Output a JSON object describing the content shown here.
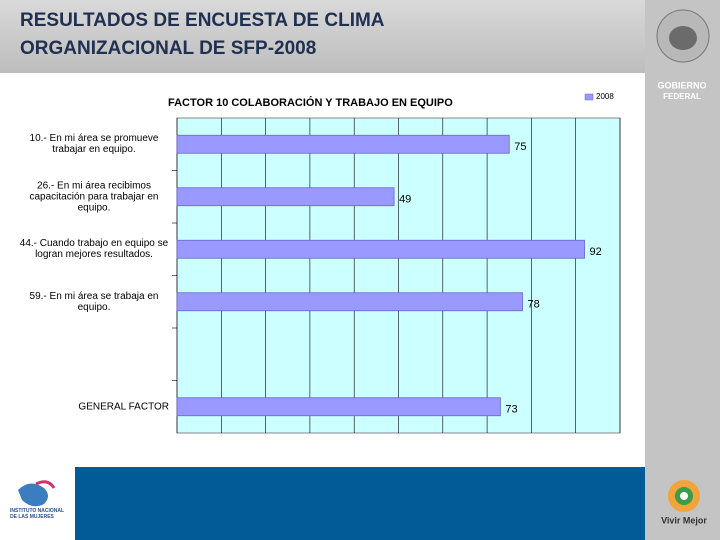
{
  "slide_title": [
    "RESULTADOS DE ENCUESTA DE CLIMA",
    "ORGANIZACIONAL DE SFP-2008"
  ],
  "logos": {
    "gobierno": [
      "GOBIERNO",
      "FEDERAL"
    ],
    "vivir": "Vivir Mejor",
    "inmujeres": "INSTITUTO NACIONAL DE LAS MUJERES"
  },
  "chart_data": {
    "type": "bar",
    "orientation": "horizontal",
    "title": "FACTOR  10 COLABORACIÓN Y TRABAJO EN EQUIPO",
    "categories": [
      "10.- En mi área se promueve trabajar en equipo.",
      "26.- En mi área recibimos capacitación para trabajar en equipo.",
      "44.- Cuando trabajo en equipo se logran mejores resultados.",
      "59.- En mi área se trabaja en equipo.",
      null,
      "GENERAL FACTOR"
    ],
    "series": [
      {
        "name": "2008",
        "color": "#9999ff",
        "values": [
          75,
          49,
          92,
          78,
          null,
          73
        ]
      }
    ],
    "xlim": [
      0,
      100
    ],
    "xticks": [
      0,
      10,
      20,
      30,
      40,
      50,
      60,
      70,
      80,
      90,
      100
    ],
    "grid": true,
    "legend": "top-right"
  }
}
